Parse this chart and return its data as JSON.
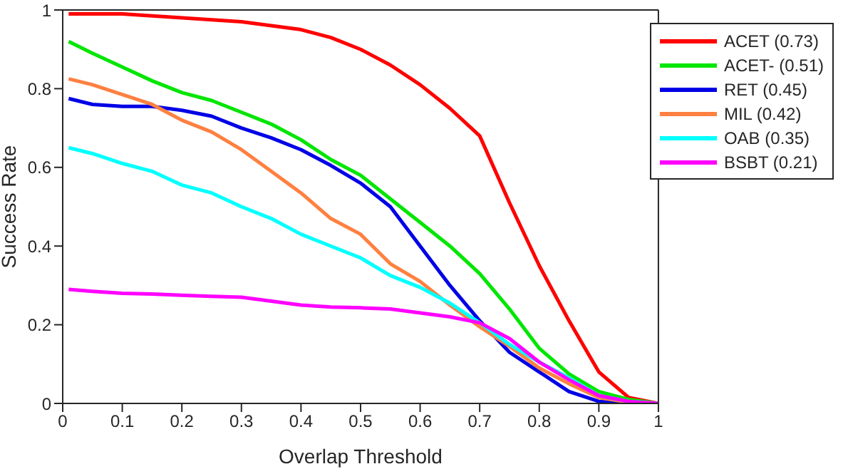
{
  "chart_data": {
    "type": "line",
    "xlabel": "Overlap Threshold",
    "ylabel": "Success Rate",
    "x": [
      0.01,
      0.05,
      0.1,
      0.15,
      0.2,
      0.25,
      0.3,
      0.35,
      0.4,
      0.45,
      0.5,
      0.55,
      0.6,
      0.65,
      0.7,
      0.75,
      0.8,
      0.85,
      0.9,
      0.95,
      1
    ],
    "series": [
      {
        "name": "ACET (0.73)",
        "color": "#ff0000",
        "values": [
          0.99,
          0.99,
          0.99,
          0.985,
          0.98,
          0.975,
          0.97,
          0.96,
          0.95,
          0.93,
          0.9,
          0.86,
          0.81,
          0.75,
          0.68,
          0.51,
          0.35,
          0.21,
          0.08,
          0.015,
          0
        ]
      },
      {
        "name": "ACET- (0.51)",
        "color": "#00e600",
        "values": [
          0.92,
          0.89,
          0.855,
          0.82,
          0.79,
          0.77,
          0.74,
          0.71,
          0.67,
          0.62,
          0.58,
          0.52,
          0.46,
          0.4,
          0.33,
          0.24,
          0.14,
          0.075,
          0.03,
          0.01,
          0
        ]
      },
      {
        "name": "RET (0.45)",
        "color": "#0000e6",
        "values": [
          0.775,
          0.76,
          0.755,
          0.755,
          0.745,
          0.73,
          0.7,
          0.675,
          0.645,
          0.605,
          0.56,
          0.5,
          0.4,
          0.3,
          0.21,
          0.13,
          0.08,
          0.03,
          0.005,
          0,
          0
        ]
      },
      {
        "name": "MIL (0.42)",
        "color": "#ff8040",
        "values": [
          0.825,
          0.81,
          0.785,
          0.76,
          0.72,
          0.69,
          0.645,
          0.59,
          0.535,
          0.47,
          0.43,
          0.355,
          0.31,
          0.25,
          0.195,
          0.145,
          0.09,
          0.05,
          0.015,
          0.003,
          0
        ]
      },
      {
        "name": "OAB (0.35)",
        "color": "#00ffff",
        "values": [
          0.65,
          0.635,
          0.61,
          0.59,
          0.555,
          0.535,
          0.5,
          0.47,
          0.43,
          0.4,
          0.37,
          0.325,
          0.295,
          0.255,
          0.205,
          0.15,
          0.105,
          0.065,
          0.02,
          0.005,
          0
        ]
      },
      {
        "name": "BSBT (0.21)",
        "color": "#ff00ff",
        "values": [
          0.29,
          0.285,
          0.28,
          0.278,
          0.275,
          0.272,
          0.27,
          0.26,
          0.25,
          0.245,
          0.243,
          0.24,
          0.23,
          0.22,
          0.205,
          0.165,
          0.105,
          0.06,
          0.02,
          0.005,
          0
        ]
      }
    ],
    "xlim": [
      0,
      1
    ],
    "xticks": [
      0,
      0.1,
      0.2,
      0.3,
      0.4,
      0.5,
      0.6,
      0.7,
      0.8,
      0.9,
      1
    ],
    "ylim": [
      0,
      1
    ],
    "yticks": [
      0,
      0.2,
      0.4,
      0.6,
      0.8,
      1
    ],
    "grid": false,
    "legend": "top right",
    "marker": "none",
    "line_style": "solid"
  }
}
